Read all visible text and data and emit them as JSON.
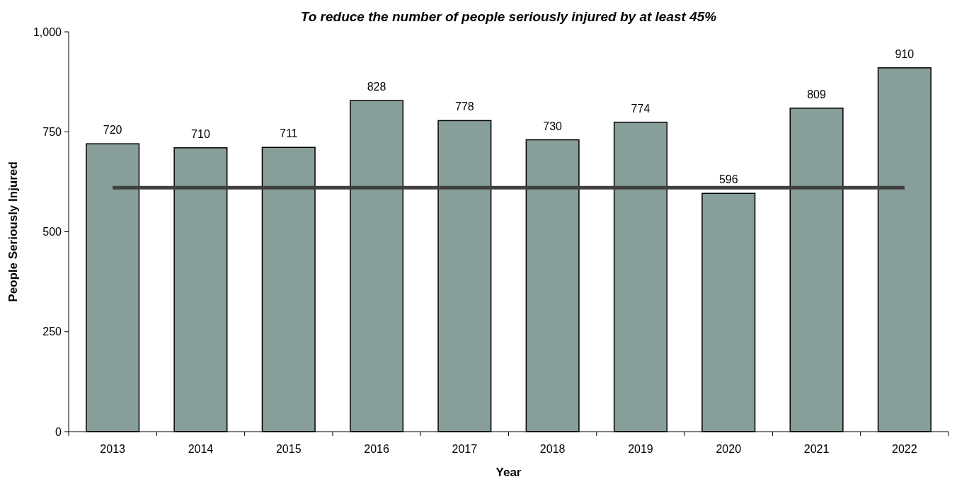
{
  "chart_data": {
    "type": "bar",
    "title": "To reduce the number of people seriously injured by at least 45%",
    "xlabel": "Year",
    "ylabel": "People Seriously Injured",
    "categories": [
      "2013",
      "2014",
      "2015",
      "2016",
      "2017",
      "2018",
      "2019",
      "2020",
      "2021",
      "2022"
    ],
    "series": [
      {
        "color": "#879e9a",
        "values": [
          720,
          710,
          711,
          828,
          778,
          730,
          774,
          596,
          809,
          910
        ],
        "value_labels": [
          "720",
          "710",
          "711",
          "828",
          "778",
          "730",
          "774",
          "596",
          "809",
          "910"
        ]
      },
      {
        "type": "line",
        "color": "#404040",
        "values": [
          610,
          610,
          610,
          610,
          610,
          610,
          610,
          610,
          610,
          610
        ]
      }
    ],
    "ylim": [
      0,
      1000
    ],
    "yticks": [
      0,
      250,
      500,
      750,
      {
        "value": 1000,
        "label": "1,000"
      }
    ],
    "grid": false
  }
}
